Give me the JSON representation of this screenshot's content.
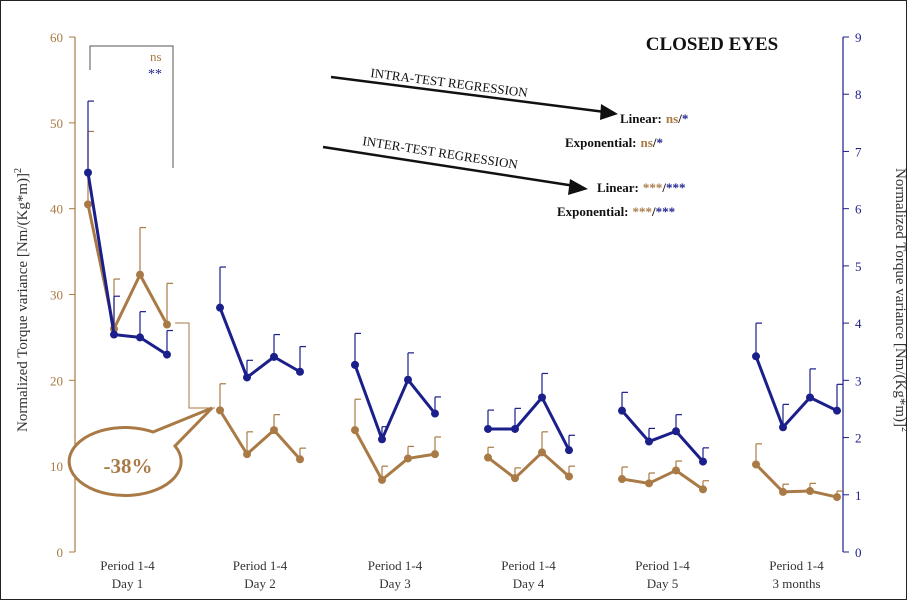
{
  "chart_data": {
    "type": "line",
    "title": "CLOSED EYES",
    "ylabel_left": "Normalized Torque variance [Nm/(Kg*m)]",
    "ylabel_left_sup": "2",
    "ylabel_right": "Normalized Torque variance [Nm/(Kg*m)]",
    "ylabel_right_sup": "2",
    "ylim_left": [
      0,
      60
    ],
    "yticks_left": [
      0,
      10,
      20,
      30,
      40,
      50,
      60
    ],
    "ylim_right": [
      0,
      9
    ],
    "yticks_right": [
      0,
      1,
      2,
      3,
      4,
      5,
      6,
      7,
      8,
      9
    ],
    "colors": {
      "left": "#a97a45",
      "right": "#1b1f8a"
    },
    "groups": [
      {
        "line1": "Period 1-4",
        "line2": "Day 1"
      },
      {
        "line1": "Period 1-4",
        "line2": "Day 2"
      },
      {
        "line1": "Period 1-4",
        "line2": "Day 3"
      },
      {
        "line1": "Period 1-4",
        "line2": "Day 4"
      },
      {
        "line1": "Period 1-4",
        "line2": "Day 5"
      },
      {
        "line1": "Period 1-4",
        "line2": "3 months"
      }
    ],
    "series": [
      {
        "axis": "left",
        "color": "#a97a45",
        "values": [
          [
            40.5,
            26.0,
            32.3,
            26.5
          ],
          [
            16.5,
            11.4,
            14.2,
            10.8
          ],
          [
            14.2,
            8.4,
            10.9,
            11.4
          ],
          [
            11.0,
            8.6,
            11.6,
            8.8
          ],
          [
            8.5,
            8.0,
            9.5,
            7.3
          ],
          [
            10.2,
            7.0,
            7.1,
            6.4
          ]
        ],
        "errors": [
          [
            8.5,
            5.8,
            5.5,
            4.8
          ],
          [
            3.1,
            2.6,
            1.8,
            1.3
          ],
          [
            3.6,
            1.6,
            1.4,
            2.0
          ],
          [
            1.2,
            1.2,
            2.4,
            1.2
          ],
          [
            1.4,
            1.2,
            1.1,
            1.0
          ],
          [
            2.4,
            0.9,
            0.9,
            0.7
          ]
        ]
      },
      {
        "axis": "right",
        "color": "#1b1f8a",
        "values": [
          [
            6.63,
            3.8,
            3.75,
            3.45
          ],
          [
            4.27,
            3.05,
            3.41,
            3.15
          ],
          [
            3.27,
            1.97,
            3.01,
            2.42
          ],
          [
            2.15,
            2.15,
            2.7,
            1.78
          ],
          [
            2.47,
            1.93,
            2.11,
            1.58
          ],
          [
            3.42,
            2.18,
            2.7,
            2.47
          ]
        ],
        "errors": [
          [
            1.25,
            0.67,
            0.45,
            0.42
          ],
          [
            0.71,
            0.3,
            0.39,
            0.44
          ],
          [
            0.55,
            0.22,
            0.47,
            0.29
          ],
          [
            0.33,
            0.36,
            0.42,
            0.26
          ],
          [
            0.32,
            0.23,
            0.29,
            0.24
          ],
          [
            0.58,
            0.4,
            0.5,
            0.46
          ]
        ]
      }
    ],
    "annotations": {
      "bracket_left_label": "ns",
      "bracket_right_label": "**",
      "percent_change": "-38%",
      "intra_test": {
        "heading": "INTRA-TEST REGRESSION",
        "linear_label": "Linear:",
        "linear_left": "ns",
        "linear_right": "*",
        "exp_label": "Exponential:",
        "exp_left": "ns",
        "exp_right": "*"
      },
      "inter_test": {
        "heading": "INTER-TEST REGRESSION",
        "linear_label": "Linear:",
        "linear_left": "***",
        "linear_right": "***",
        "exp_label": "Exponential:",
        "exp_left": "***",
        "exp_right": "***"
      },
      "separator": "/"
    }
  }
}
